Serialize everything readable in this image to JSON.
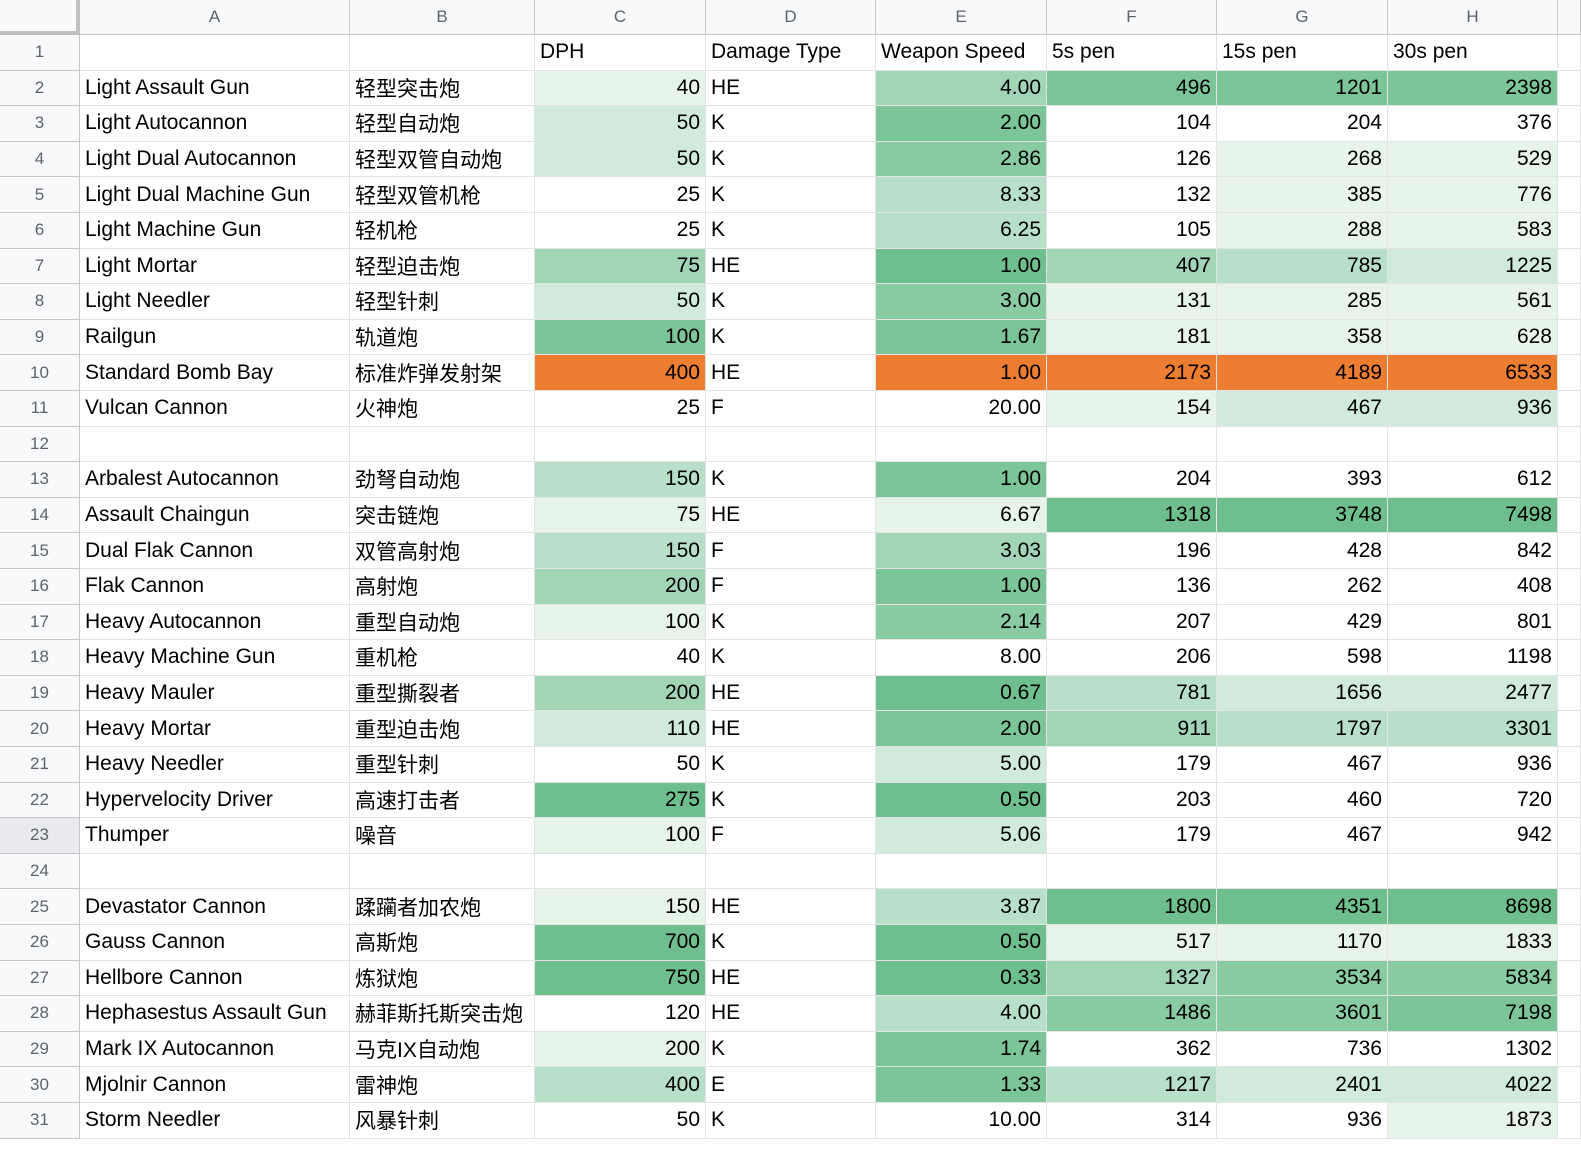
{
  "columns": [
    "A",
    "B",
    "C",
    "D",
    "E",
    "F",
    "G",
    "H"
  ],
  "colors": {
    "header_bg": "#f8f9fa",
    "grid_line": "#e2e3e3",
    "green_scale": [
      "#ffffff",
      "#e6f4ea",
      "#d0eadb",
      "#b8e0c8",
      "#a1d5b5",
      "#89cba2",
      "#7cc598",
      "#6fbf8e"
    ],
    "highlight_orange": "#ed7d31"
  },
  "header_row": {
    "row_number": "1",
    "cells": [
      "",
      "",
      "DPH",
      "Damage Type",
      "Weapon Speed",
      "5s pen",
      "15s pen",
      "30s pen"
    ]
  },
  "rows": [
    {
      "n": "2",
      "name": "Light Assault Gun",
      "cn": "轻型突击炮",
      "dph": "40",
      "type": "HE",
      "speed": "4.00",
      "p5": "496",
      "p15": "1201",
      "p30": "2398",
      "f": [
        1,
        0,
        4,
        6,
        6,
        6
      ]
    },
    {
      "n": "3",
      "name": "Light Autocannon",
      "cn": "轻型自动炮",
      "dph": "50",
      "type": "K",
      "speed": "2.00",
      "p5": "104",
      "p15": "204",
      "p30": "376",
      "f": [
        2,
        0,
        6,
        0,
        0,
        0
      ]
    },
    {
      "n": "4",
      "name": "Light Dual Autocannon",
      "cn": "轻型双管自动炮",
      "dph": "50",
      "type": "K",
      "speed": "2.86",
      "p5": "126",
      "p15": "268",
      "p30": "529",
      "f": [
        2,
        0,
        5,
        0,
        1,
        1
      ]
    },
    {
      "n": "5",
      "name": "Light Dual Machine Gun",
      "cn": "轻型双管机枪",
      "dph": "25",
      "type": "K",
      "speed": "8.33",
      "p5": "132",
      "p15": "385",
      "p30": "776",
      "f": [
        0,
        0,
        3,
        0,
        1,
        1
      ]
    },
    {
      "n": "6",
      "name": "Light Machine Gun",
      "cn": "轻机枪",
      "dph": "25",
      "type": "K",
      "speed": "6.25",
      "p5": "105",
      "p15": "288",
      "p30": "583",
      "f": [
        0,
        0,
        3,
        0,
        1,
        1
      ]
    },
    {
      "n": "7",
      "name": "Light Mortar",
      "cn": "轻型迫击炮",
      "dph": "75",
      "type": "HE",
      "speed": "1.00",
      "p5": "407",
      "p15": "785",
      "p30": "1225",
      "f": [
        4,
        0,
        7,
        4,
        3,
        2
      ]
    },
    {
      "n": "8",
      "name": "Light Needler",
      "cn": "轻型针刺",
      "dph": "50",
      "type": "K",
      "speed": "3.00",
      "p5": "131",
      "p15": "285",
      "p30": "561",
      "f": [
        2,
        0,
        5,
        1,
        1,
        1
      ]
    },
    {
      "n": "9",
      "name": "Railgun",
      "cn": "轨道炮",
      "dph": "100",
      "type": "K",
      "speed": "1.67",
      "p5": "181",
      "p15": "358",
      "p30": "628",
      "f": [
        6,
        0,
        6,
        1,
        1,
        1
      ]
    },
    {
      "n": "10",
      "name": "Standard Bomb Bay",
      "cn": "标准炸弹发射架",
      "dph": "400",
      "type": "HE",
      "speed": "1.00",
      "p5": "2173",
      "p15": "4189",
      "p30": "6533",
      "f": [
        9,
        0,
        9,
        9,
        9,
        9
      ]
    },
    {
      "n": "11",
      "name": "Vulcan Cannon",
      "cn": "火神炮",
      "dph": "25",
      "type": "F",
      "speed": "20.00",
      "p5": "154",
      "p15": "467",
      "p30": "936",
      "f": [
        0,
        0,
        0,
        1,
        2,
        2
      ]
    },
    {
      "n": "12",
      "empty": true
    },
    {
      "n": "13",
      "name": "Arbalest Autocannon",
      "cn": "劲弩自动炮",
      "dph": "150",
      "type": "K",
      "speed": "1.00",
      "p5": "204",
      "p15": "393",
      "p30": "612",
      "f": [
        3,
        0,
        6,
        0,
        0,
        0
      ]
    },
    {
      "n": "14",
      "name": "Assault Chaingun",
      "cn": "突击链炮",
      "dph": "75",
      "type": "HE",
      "speed": "6.67",
      "p5": "1318",
      "p15": "3748",
      "p30": "7498",
      "f": [
        1,
        0,
        1,
        7,
        7,
        7
      ]
    },
    {
      "n": "15",
      "name": "Dual Flak Cannon",
      "cn": "双管高射炮",
      "dph": "150",
      "type": "F",
      "speed": "3.03",
      "p5": "196",
      "p15": "428",
      "p30": "842",
      "f": [
        3,
        0,
        4,
        0,
        0,
        0
      ]
    },
    {
      "n": "16",
      "name": "Flak Cannon",
      "cn": "高射炮",
      "dph": "200",
      "type": "F",
      "speed": "1.00",
      "p5": "136",
      "p15": "262",
      "p30": "408",
      "f": [
        4,
        0,
        6,
        0,
        0,
        0
      ]
    },
    {
      "n": "17",
      "name": "Heavy Autocannon",
      "cn": "重型自动炮",
      "dph": "100",
      "type": "K",
      "speed": "2.14",
      "p5": "207",
      "p15": "429",
      "p30": "801",
      "f": [
        1,
        0,
        5,
        0,
        0,
        0
      ]
    },
    {
      "n": "18",
      "name": "Heavy Machine Gun",
      "cn": "重机枪",
      "dph": "40",
      "type": "K",
      "speed": "8.00",
      "p5": "206",
      "p15": "598",
      "p30": "1198",
      "f": [
        0,
        0,
        0,
        0,
        0,
        0
      ]
    },
    {
      "n": "19",
      "name": "Heavy Mauler",
      "cn": "重型撕裂者",
      "dph": "200",
      "type": "HE",
      "speed": "0.67",
      "p5": "781",
      "p15": "1656",
      "p30": "2477",
      "f": [
        4,
        0,
        7,
        3,
        2,
        2
      ]
    },
    {
      "n": "20",
      "name": "Heavy Mortar",
      "cn": "重型迫击炮",
      "dph": "110",
      "type": "HE",
      "speed": "2.00",
      "p5": "911",
      "p15": "1797",
      "p30": "3301",
      "f": [
        2,
        0,
        6,
        4,
        3,
        3
      ]
    },
    {
      "n": "21",
      "name": "Heavy Needler",
      "cn": "重型针刺",
      "dph": "50",
      "type": "K",
      "speed": "5.00",
      "p5": "179",
      "p15": "467",
      "p30": "936",
      "f": [
        0,
        0,
        2,
        0,
        0,
        0
      ]
    },
    {
      "n": "22",
      "name": "Hypervelocity Driver",
      "cn": "高速打击者",
      "dph": "275",
      "type": "K",
      "speed": "0.50",
      "p5": "203",
      "p15": "460",
      "p30": "720",
      "f": [
        7,
        0,
        7,
        0,
        0,
        0
      ]
    },
    {
      "n": "23",
      "name": "Thumper",
      "cn": "噪音",
      "dph": "100",
      "type": "F",
      "speed": "5.06",
      "p5": "179",
      "p15": "467",
      "p30": "942",
      "f": [
        1,
        0,
        2,
        0,
        0,
        0
      ]
    },
    {
      "n": "24",
      "empty": true
    },
    {
      "n": "25",
      "name": "Devastator Cannon",
      "cn": "蹂躏者加农炮",
      "dph": "150",
      "type": "HE",
      "speed": "3.87",
      "p5": "1800",
      "p15": "4351",
      "p30": "8698",
      "f": [
        1,
        0,
        3,
        7,
        7,
        7
      ]
    },
    {
      "n": "26",
      "name": "Gauss Cannon",
      "cn": "高斯炮",
      "dph": "700",
      "type": "K",
      "speed": "0.50",
      "p5": "517",
      "p15": "1170",
      "p30": "1833",
      "f": [
        7,
        0,
        7,
        1,
        1,
        1
      ]
    },
    {
      "n": "27",
      "name": "Hellbore Cannon",
      "cn": "炼狱炮",
      "dph": "750",
      "type": "HE",
      "speed": "0.33",
      "p5": "1327",
      "p15": "3534",
      "p30": "5834",
      "f": [
        7,
        0,
        7,
        4,
        5,
        5
      ]
    },
    {
      "n": "28",
      "name": "Hephasestus Assault Gun",
      "cn": "赫菲斯托斯突击炮",
      "dph": "120",
      "type": "HE",
      "speed": "4.00",
      "p5": "1486",
      "p15": "3601",
      "p30": "7198",
      "f": [
        0,
        0,
        3,
        5,
        5,
        6
      ]
    },
    {
      "n": "29",
      "name": "Mark IX Autocannon",
      "cn": "马克IX自动炮",
      "dph": "200",
      "type": "K",
      "speed": "1.74",
      "p5": "362",
      "p15": "736",
      "p30": "1302",
      "f": [
        1,
        0,
        6,
        0,
        0,
        0
      ]
    },
    {
      "n": "30",
      "name": "Mjolnir Cannon",
      "cn": "雷神炮",
      "dph": "400",
      "type": "E",
      "speed": "1.33",
      "p5": "1217",
      "p15": "2401",
      "p30": "4022",
      "f": [
        3,
        0,
        6,
        3,
        2,
        2
      ]
    },
    {
      "n": "31",
      "name": "Storm Needler",
      "cn": "风暴针刺",
      "dph": "50",
      "type": "K",
      "speed": "10.00",
      "p5": "314",
      "p15": "936",
      "p30": "1873",
      "f": [
        0,
        0,
        0,
        0,
        0,
        1
      ]
    }
  ]
}
